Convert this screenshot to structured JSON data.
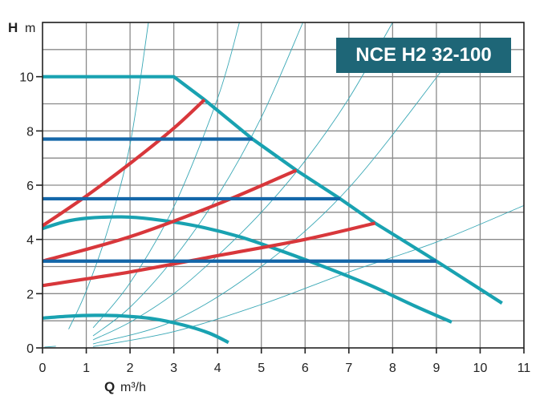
{
  "chart_data": {
    "type": "line",
    "title": "NCE H2 32-100",
    "xlabel_bold": "Q",
    "xlabel_unit": "m³/h",
    "ylabel_bold": "H",
    "ylabel_unit": "m",
    "xlim": [
      0,
      11
    ],
    "ylim": [
      0,
      12
    ],
    "x_ticks": [
      "0",
      "1",
      "2",
      "3",
      "4",
      "5",
      "6",
      "7",
      "8",
      "9",
      "10",
      "11"
    ],
    "y_ticks": [
      "0",
      "2",
      "4",
      "6",
      "8",
      "10"
    ],
    "grid": true,
    "colors": {
      "max_curve": "#19a2b1",
      "constant_pressure": "#1467a9",
      "proportional_pressure": "#d8373b",
      "system_curve": "#3aa8b6",
      "grid": "#8a8a8a",
      "axis": "#222222",
      "title_bg": "#1e6677"
    },
    "series": [
      {
        "name": "max-curve",
        "kind": "max_curve",
        "points": [
          [
            0,
            10
          ],
          [
            3.0,
            10
          ],
          [
            3.7,
            9.15
          ],
          [
            4.8,
            7.7
          ],
          [
            5.8,
            6.55
          ],
          [
            6.8,
            5.5
          ],
          [
            7.6,
            4.6
          ],
          [
            9.0,
            3.2
          ],
          [
            10.5,
            1.65
          ]
        ]
      },
      {
        "name": "min-curve-middle",
        "kind": "max_curve",
        "points": [
          [
            0,
            4.4
          ],
          [
            0.5,
            4.65
          ],
          [
            1.0,
            4.78
          ],
          [
            1.8,
            4.83
          ],
          [
            2.5,
            4.75
          ],
          [
            3.5,
            4.5
          ],
          [
            4.5,
            4.1
          ],
          [
            5.5,
            3.55
          ],
          [
            6.5,
            2.95
          ],
          [
            7.5,
            2.3
          ],
          [
            8.5,
            1.55
          ],
          [
            9.35,
            0.95
          ]
        ]
      },
      {
        "name": "min-curve-low",
        "kind": "max_curve",
        "points": [
          [
            0,
            1.1
          ],
          [
            0.6,
            1.17
          ],
          [
            1.2,
            1.2
          ],
          [
            1.8,
            1.18
          ],
          [
            2.5,
            1.08
          ],
          [
            3.2,
            0.85
          ],
          [
            3.8,
            0.55
          ],
          [
            4.25,
            0.2
          ]
        ]
      },
      {
        "name": "constant-pressure-high",
        "kind": "constant_pressure",
        "points": [
          [
            0,
            7.7
          ],
          [
            4.8,
            7.7
          ]
        ]
      },
      {
        "name": "constant-pressure-mid",
        "kind": "constant_pressure",
        "points": [
          [
            0,
            5.5
          ],
          [
            6.8,
            5.5
          ]
        ]
      },
      {
        "name": "constant-pressure-low",
        "kind": "constant_pressure",
        "points": [
          [
            0,
            3.2
          ],
          [
            9.0,
            3.2
          ]
        ]
      },
      {
        "name": "proportional-pressure-high",
        "kind": "proportional_pressure",
        "points": [
          [
            0,
            4.5
          ],
          [
            1.0,
            5.6
          ],
          [
            2.0,
            6.8
          ],
          [
            3.0,
            8.1
          ],
          [
            3.7,
            9.15
          ]
        ]
      },
      {
        "name": "proportional-pressure-mid",
        "kind": "proportional_pressure",
        "points": [
          [
            0,
            3.2
          ],
          [
            2.0,
            4.1
          ],
          [
            4.0,
            5.3
          ],
          [
            5.8,
            6.55
          ]
        ]
      },
      {
        "name": "proportional-pressure-low",
        "kind": "proportional_pressure",
        "points": [
          [
            0,
            2.3
          ],
          [
            2.0,
            2.8
          ],
          [
            4.0,
            3.4
          ],
          [
            6.0,
            4.0
          ],
          [
            7.6,
            4.6
          ]
        ]
      },
      {
        "name": "system-curve-1",
        "kind": "system_curve",
        "points": [
          [
            0.6,
            0.7
          ],
          [
            1.0,
            2.1
          ],
          [
            1.5,
            4.4
          ],
          [
            2.0,
            7.5
          ],
          [
            2.42,
            12
          ]
        ]
      },
      {
        "name": "system-curve-2",
        "kind": "system_curve",
        "points": [
          [
            1.16,
            0.75
          ],
          [
            2.0,
            2.4
          ],
          [
            3.0,
            5.2
          ],
          [
            4.0,
            9.2
          ],
          [
            4.5,
            12
          ]
        ]
      },
      {
        "name": "system-curve-3",
        "kind": "system_curve",
        "points": [
          [
            1.16,
            0.45
          ],
          [
            2.0,
            1.5
          ],
          [
            3.0,
            3.3
          ],
          [
            4.0,
            5.6
          ],
          [
            5.0,
            8.5
          ],
          [
            5.95,
            12
          ]
        ]
      },
      {
        "name": "system-curve-4",
        "kind": "system_curve",
        "points": [
          [
            1.16,
            0.3
          ],
          [
            2.0,
            0.95
          ],
          [
            3.0,
            2.0
          ],
          [
            4.0,
            3.4
          ],
          [
            5.0,
            5.0
          ],
          [
            6.0,
            6.9
          ],
          [
            7.0,
            9.2
          ],
          [
            8.0,
            12
          ]
        ]
      },
      {
        "name": "system-curve-5",
        "kind": "system_curve",
        "points": [
          [
            1.16,
            0.15
          ],
          [
            3.0,
            1.0
          ],
          [
            5.0,
            3.0
          ],
          [
            7.0,
            5.9
          ],
          [
            9.3,
            10.6
          ]
        ]
      },
      {
        "name": "system-curve-6",
        "kind": "system_curve",
        "points": [
          [
            1.16,
            0.05
          ],
          [
            3.0,
            0.6
          ],
          [
            5.0,
            1.6
          ],
          [
            7.0,
            2.8
          ],
          [
            9.0,
            3.9
          ],
          [
            11.0,
            5.25
          ]
        ]
      },
      {
        "name": "system-curve-origin-stub",
        "kind": "system_curve",
        "points": [
          [
            0.05,
            0.03
          ],
          [
            0.3,
            0.06
          ]
        ]
      }
    ]
  }
}
